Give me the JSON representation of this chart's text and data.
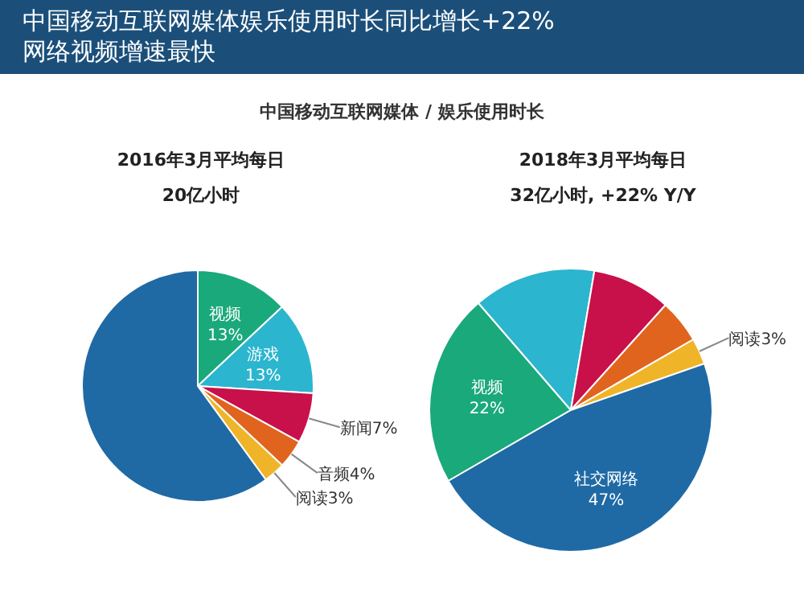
{
  "chart_data": [
    {
      "type": "pie",
      "title": "中国移动互联网媒体娱乐使用时长同比增长+22%\n网络视频增速最快",
      "subtitle": "中国移动互联网媒体 / 娱乐使用时长",
      "annotations": [
        "2016年3月平均每日",
        "20亿小时"
      ],
      "categories": [
        "视频",
        "游戏",
        "新闻",
        "音频",
        "阅读",
        null
      ],
      "values": [
        13,
        13,
        7,
        4,
        3,
        60
      ],
      "value_labels": [
        "13%",
        "13%",
        "7%",
        "4%",
        "3%",
        null
      ],
      "colors": [
        "#1aa97a",
        "#2bb5cf",
        "#c8104a",
        "#e0641e",
        "#f0b429",
        "#1f6aa5"
      ]
    },
    {
      "type": "pie",
      "annotations": [
        "2018年3月平均每日",
        "32亿小时, +22% Y/Y"
      ],
      "categories": [
        "视频",
        null,
        null,
        null,
        "阅读",
        "社交网络"
      ],
      "values": [
        22,
        14,
        9,
        5,
        3,
        47
      ],
      "value_labels": [
        "22%",
        null,
        null,
        null,
        "3%",
        "47%"
      ],
      "colors": [
        "#1aa97a",
        "#2bb5cf",
        "#c8104a",
        "#e0641e",
        "#f0b429",
        "#1f6aa5"
      ]
    }
  ]
}
